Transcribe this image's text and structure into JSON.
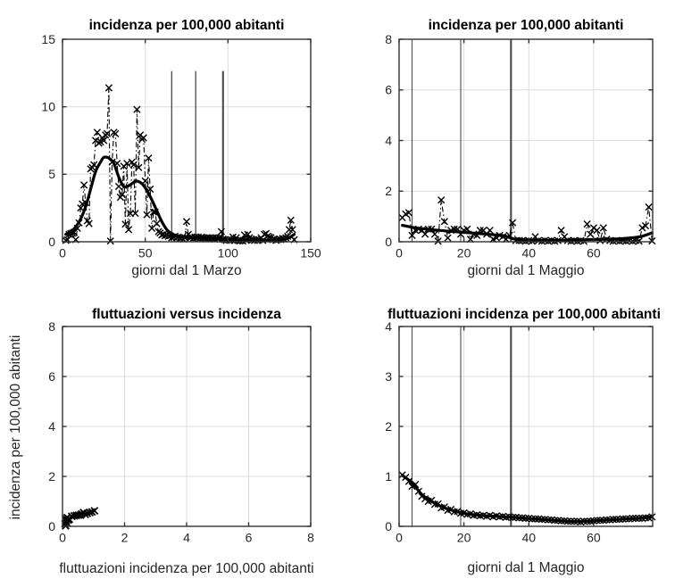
{
  "figure": {
    "background": "#ffffff",
    "axis_color": "#333333",
    "tick_text_color": "#262626",
    "grid_color": "#dcdcdc",
    "data_color": "#000000",
    "event_line_color": "#4a4a4a"
  },
  "chart_data": [
    {
      "type": "line",
      "title": "incidenza per 100,000 abitanti",
      "xlabel": "giorni dal 1 Marzo",
      "ylabel": "",
      "xlim": [
        0,
        150
      ],
      "ylim": [
        0,
        15
      ],
      "xticks": [
        0,
        50,
        100,
        150
      ],
      "yticks": [
        0,
        5,
        10,
        15
      ],
      "grid": true,
      "vlines": [
        {
          "x": 66,
          "w": 1.3,
          "ymax": 12.65
        },
        {
          "x": 80.5,
          "w": 1.3,
          "ymax": 12.65
        },
        {
          "x": 97,
          "w": 2.1,
          "ymax": 12.65
        }
      ],
      "series": [
        {
          "style": "noisy",
          "x": [
            2,
            3,
            4,
            5,
            6,
            7,
            8,
            9,
            10,
            11,
            12,
            13,
            14,
            15,
            16,
            17,
            18,
            19,
            20,
            21,
            22,
            23,
            24,
            25,
            26,
            27,
            28,
            29,
            30,
            31,
            32,
            33,
            34,
            35,
            36,
            37,
            38,
            39,
            40,
            41,
            42,
            43,
            44,
            45,
            46,
            47,
            48,
            49,
            50,
            51,
            52,
            53,
            54,
            55,
            56,
            57,
            58,
            59,
            60,
            61,
            62,
            63,
            64,
            65,
            66,
            67,
            68,
            69,
            70,
            71,
            72,
            73,
            74,
            75,
            76,
            77,
            78,
            79,
            80,
            81,
            82,
            83,
            84,
            85,
            86,
            87,
            88,
            89,
            90,
            91,
            92,
            93,
            94,
            95,
            96,
            97,
            98,
            99,
            100,
            101,
            102,
            103,
            104,
            105,
            106,
            107,
            108,
            109,
            110,
            111,
            112,
            113,
            114,
            115,
            116,
            117,
            118,
            119,
            120,
            121,
            122,
            123,
            124,
            125,
            126,
            127,
            128,
            129,
            130,
            131,
            132,
            133,
            134,
            135,
            136,
            137,
            138,
            139,
            140
          ],
          "y": [
            0.1,
            0.15,
            0.55,
            0.6,
            0.65,
            0.7,
            0.15,
            1.0,
            1.4,
            2.5,
            2.8,
            4.2,
            2.9,
            1.55,
            1.35,
            5.4,
            5.5,
            5.7,
            7.5,
            8.1,
            7.3,
            7.4,
            7.7,
            7.5,
            7.9,
            8.0,
            11.4,
            0.05,
            5.9,
            8.1,
            8.0,
            5.8,
            4.1,
            3.3,
            3.5,
            5.6,
            1.3,
            5.8,
            0.9,
            2.1,
            5.9,
            5.7,
            2.1,
            9.8,
            5.5,
            7.9,
            7.6,
            7.7,
            4.5,
            2.0,
            6.2,
            3.9,
            1.0,
            2.2,
            2.2,
            1.35,
            0.75,
            0.65,
            0.5,
            0.55,
            0.45,
            0.5,
            0.4,
            0.45,
            0.3,
            0.35,
            0.4,
            0.3,
            0.35,
            0.25,
            0.3,
            0.2,
            0.3,
            1.5,
            0.55,
            0.3,
            0.35,
            0.25,
            0.35,
            0.3,
            0.35,
            0.25,
            0.35,
            0.3,
            0.25,
            0.3,
            0.25,
            0.3,
            0.25,
            0.3,
            0.2,
            0.3,
            0.25,
            0.3,
            0.75,
            0.2,
            0.15,
            0.1,
            0.15,
            0.1,
            0.15,
            0.35,
            0.1,
            0.3,
            0.1,
            0.05,
            0.1,
            0.05,
            0.5,
            0.1,
            0.55,
            0.3,
            0.2,
            0.15,
            0.1,
            0.15,
            0.1,
            0.15,
            0.3,
            0.1,
            0.55,
            0.6,
            0.4,
            0.35,
            0.3,
            0.15,
            0.2,
            0.1,
            0.15,
            0.2,
            0.15,
            0.25,
            0.2,
            0.3,
            0.4,
            0.9,
            1.6,
            0.9,
            0.15
          ]
        },
        {
          "style": "smooth",
          "x": [
            2,
            5,
            8,
            11,
            14,
            17,
            20,
            23,
            25,
            28,
            31,
            34,
            37,
            40,
            43,
            45,
            48,
            51,
            54,
            57,
            60,
            63,
            66,
            70,
            75,
            80,
            85,
            90,
            95,
            100,
            105,
            110,
            115,
            120,
            125,
            130,
            134,
            137,
            140
          ],
          "y": [
            0.55,
            0.75,
            1.1,
            1.7,
            2.6,
            3.9,
            5.2,
            5.9,
            6.25,
            6.2,
            5.8,
            4.8,
            4.1,
            4.15,
            4.4,
            4.5,
            4.3,
            3.8,
            3.1,
            2.3,
            1.5,
            0.9,
            0.6,
            0.4,
            0.32,
            0.3,
            0.28,
            0.26,
            0.22,
            0.17,
            0.12,
            0.1,
            0.09,
            0.09,
            0.1,
            0.12,
            0.18,
            0.3,
            0.55
          ]
        }
      ]
    },
    {
      "type": "line",
      "title": "incidenza per 100,000 abitanti",
      "xlabel": "giorni dal 1 Maggio",
      "ylabel": "",
      "xlim": [
        0,
        78.2
      ],
      "ylim": [
        0,
        8
      ],
      "xticks": [
        0,
        20,
        40,
        60
      ],
      "yticks": [
        0,
        2,
        4,
        6,
        8
      ],
      "grid": true,
      "vlines": [
        {
          "x": 4,
          "w": 1.1
        },
        {
          "x": 19,
          "w": 1.1
        },
        {
          "x": 34.5,
          "w": 2.1
        }
      ],
      "series": [
        {
          "style": "noisy",
          "x": [
            1,
            2,
            3,
            4,
            5,
            6,
            7,
            8,
            9,
            10,
            11,
            12,
            13,
            14,
            15,
            16,
            17,
            18,
            19,
            20,
            21,
            22,
            23,
            24,
            25,
            26,
            27,
            28,
            29,
            30,
            31,
            32,
            33,
            34,
            35,
            36,
            37,
            38,
            39,
            40,
            41,
            42,
            43,
            44,
            45,
            46,
            47,
            48,
            49,
            50,
            51,
            52,
            53,
            54,
            55,
            56,
            57,
            58,
            59,
            60,
            61,
            62,
            63,
            64,
            65,
            66,
            67,
            68,
            69,
            70,
            71,
            72,
            73,
            74,
            75,
            76,
            77,
            78
          ],
          "y": [
            0.95,
            1.1,
            1.15,
            0.25,
            0.45,
            0.5,
            0.45,
            0.3,
            0.5,
            0.5,
            0.3,
            0.02,
            1.65,
            0.8,
            0.15,
            0.45,
            0.5,
            0.5,
            0.3,
            0.45,
            0.5,
            0.1,
            0.3,
            0.25,
            0.45,
            0.45,
            0.3,
            0.45,
            0.1,
            0.15,
            0.25,
            0.2,
            0.1,
            0.25,
            0.75,
            0.05,
            0.05,
            0.05,
            0.02,
            0.05,
            0.02,
            0.2,
            0.05,
            0.02,
            0.05,
            0.02,
            0.05,
            0.02,
            0.05,
            0.45,
            0.2,
            0.05,
            0.02,
            0.05,
            0.02,
            0.05,
            0.02,
            0.7,
            0.3,
            0.55,
            0.45,
            0.05,
            0.55,
            0.1,
            0.05,
            0.02,
            0.05,
            0.02,
            0.05,
            0.02,
            0.05,
            0.02,
            0.05,
            0.02,
            0.55,
            0.63,
            1.37,
            0.03
          ]
        },
        {
          "style": "smooth",
          "x": [
            1,
            5,
            10,
            15,
            20,
            25,
            30,
            33,
            35,
            38,
            42,
            46,
            50,
            55,
            60,
            64,
            68,
            72,
            75,
            78
          ],
          "y": [
            0.65,
            0.55,
            0.48,
            0.42,
            0.37,
            0.32,
            0.27,
            0.22,
            0.12,
            0.07,
            0.06,
            0.05,
            0.06,
            0.07,
            0.09,
            0.1,
            0.12,
            0.16,
            0.22,
            0.35
          ]
        }
      ]
    },
    {
      "type": "scatter",
      "title": "fluttuazioni versus incidenza",
      "xlabel": "fluttuazioni incidenza per 100,000 abitanti",
      "ylabel": "incidenza per 100,000 abitanti",
      "xlim": [
        0,
        8
      ],
      "ylim": [
        0,
        8
      ],
      "xticks": [
        0,
        2,
        4,
        6,
        8
      ],
      "yticks": [
        0,
        2,
        4,
        6,
        8
      ],
      "grid": true,
      "vlines": [],
      "series": [
        {
          "style": "trail",
          "x": [
            0.1,
            0.08,
            0.15,
            0.12,
            0.1,
            0.18,
            0.2,
            0.15,
            0.22,
            0.3,
            0.38,
            0.45,
            0.52,
            0.58,
            0.62,
            0.68,
            0.73,
            0.8,
            0.88,
            0.95,
            1.03
          ],
          "y": [
            0.02,
            0.1,
            0.12,
            0.2,
            0.3,
            0.25,
            0.3,
            0.35,
            0.28,
            0.4,
            0.42,
            0.44,
            0.45,
            0.45,
            0.5,
            0.55,
            0.48,
            0.52,
            0.55,
            0.58,
            0.62
          ]
        }
      ]
    },
    {
      "type": "line",
      "title": "fluttuazioni incidenza per 100,000 abitanti",
      "xlabel": "giorni dal 1 Maggio",
      "ylabel": "",
      "xlim": [
        0,
        78.2
      ],
      "ylim": [
        0,
        4
      ],
      "xticks": [
        0,
        20,
        40,
        60
      ],
      "yticks": [
        0,
        1,
        2,
        3,
        4
      ],
      "grid": true,
      "vlines": [
        {
          "x": 4,
          "w": 1.1
        },
        {
          "x": 19,
          "w": 1.1
        },
        {
          "x": 34.5,
          "w": 2.1
        }
      ],
      "series": [
        {
          "style": "noisy",
          "x": [
            1,
            2,
            3,
            4,
            5,
            6,
            7,
            8,
            9,
            10,
            11,
            12,
            13,
            14,
            15,
            16,
            17,
            18,
            19,
            20,
            21,
            22,
            23,
            24,
            25,
            26,
            27,
            28,
            29,
            30,
            31,
            32,
            33,
            34,
            35,
            36,
            37,
            38,
            39,
            40,
            41,
            42,
            43,
            44,
            45,
            46,
            47,
            48,
            49,
            50,
            51,
            52,
            53,
            54,
            55,
            56,
            57,
            58,
            59,
            60,
            61,
            62,
            63,
            64,
            65,
            66,
            67,
            68,
            69,
            70,
            71,
            72,
            73,
            74,
            75,
            76,
            77,
            78
          ],
          "y": [
            1.03,
            0.98,
            0.9,
            0.8,
            0.84,
            0.7,
            0.6,
            0.55,
            0.5,
            0.52,
            0.44,
            0.45,
            0.37,
            0.39,
            0.32,
            0.34,
            0.29,
            0.3,
            0.26,
            0.27,
            0.24,
            0.25,
            0.22,
            0.23,
            0.21,
            0.22,
            0.2,
            0.22,
            0.19,
            0.21,
            0.19,
            0.2,
            0.18,
            0.19,
            0.18,
            0.18,
            0.17,
            0.17,
            0.16,
            0.16,
            0.15,
            0.15,
            0.15,
            0.14,
            0.14,
            0.13,
            0.13,
            0.12,
            0.12,
            0.11,
            0.11,
            0.1,
            0.1,
            0.1,
            0.1,
            0.09,
            0.1,
            0.1,
            0.1,
            0.11,
            0.12,
            0.12,
            0.12,
            0.13,
            0.13,
            0.14,
            0.14,
            0.14,
            0.15,
            0.15,
            0.15,
            0.16,
            0.16,
            0.16,
            0.16,
            0.17,
            0.17,
            0.19
          ]
        },
        {
          "style": "smooth",
          "x": [
            1,
            4,
            7,
            10,
            14,
            18,
            22,
            26,
            30,
            35,
            40,
            45,
            50,
            55,
            60,
            65,
            70,
            74,
            78
          ],
          "y": [
            1.02,
            0.87,
            0.64,
            0.5,
            0.37,
            0.29,
            0.24,
            0.215,
            0.2,
            0.18,
            0.155,
            0.135,
            0.11,
            0.095,
            0.11,
            0.13,
            0.15,
            0.16,
            0.19
          ]
        }
      ]
    }
  ]
}
